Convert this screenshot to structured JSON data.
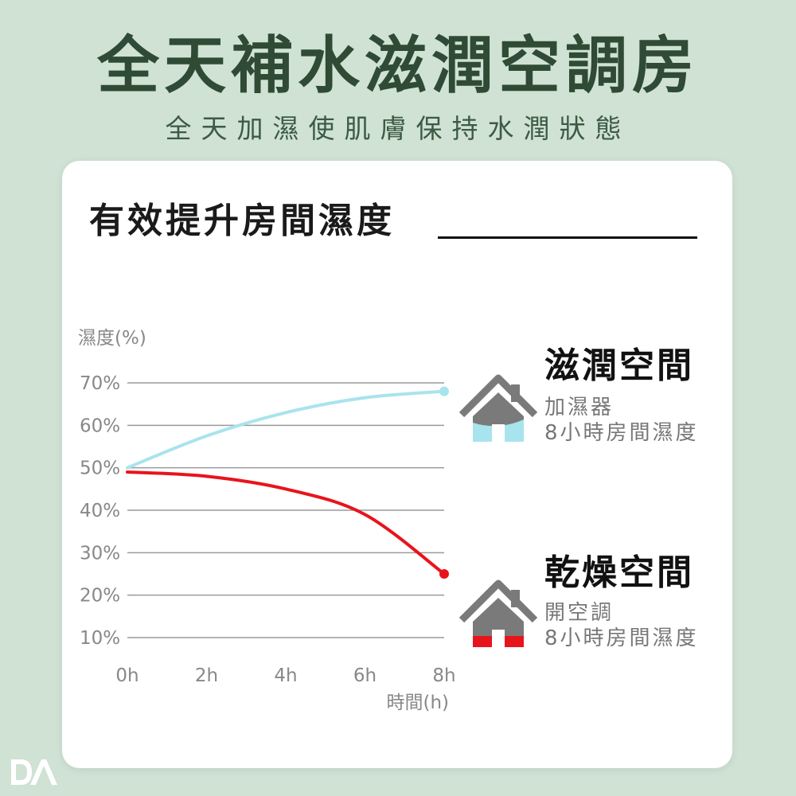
{
  "title": "全天補水滋潤空調房",
  "subtitle": "全天加濕使肌膚保持水潤狀態",
  "card": {
    "heading": "有效提升房間濕度"
  },
  "chart_data": {
    "type": "line",
    "ylabel": "濕度(%)",
    "xlabel": "時間(h)",
    "x_ticks": [
      "0h",
      "2h",
      "4h",
      "6h",
      "8h"
    ],
    "y_ticks": [
      "10%",
      "20%",
      "30%",
      "40%",
      "50%",
      "60%",
      "70%"
    ],
    "x": [
      0,
      2,
      4,
      6,
      8
    ],
    "ylim": [
      10,
      70
    ],
    "xlim": [
      0,
      8
    ],
    "grid": true,
    "series": [
      {
        "name": "滋潤空間",
        "color": "#a8e4ee",
        "values": [
          50,
          57.5,
          63,
          66.5,
          68
        ]
      },
      {
        "name": "乾燥空間",
        "color": "#e8141c",
        "values": [
          49,
          48,
          45,
          39,
          25
        ]
      }
    ]
  },
  "labels": {
    "moist": {
      "title": "滋潤空間",
      "line1": "加濕器",
      "line2": "8小時房間濕度"
    },
    "dry": {
      "title": "乾燥空間",
      "line1": "開空調",
      "line2": "8小時房間濕度"
    }
  },
  "colors": {
    "background": "#cfe2d4",
    "title": "#2f4a35",
    "moist": "#a8e4ee",
    "dry": "#e8141c",
    "house": "#7a7a7a"
  },
  "logo": {
    "icon": "da-logo-icon"
  }
}
